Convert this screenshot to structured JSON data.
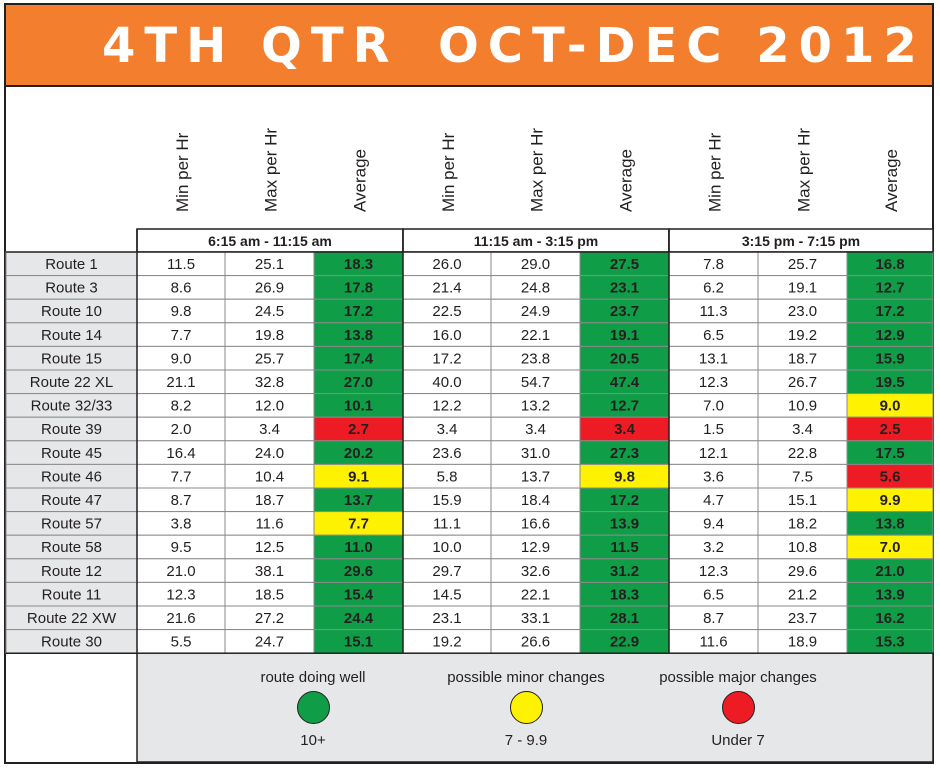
{
  "title_left": "4TH QTR",
  "title_right": "OCT-DEC 2012",
  "chart_data": {
    "type": "table",
    "columns": [
      "Min per Hr",
      "Max per Hr",
      "Average"
    ],
    "periods": [
      "6:15 am - 11:15 am",
      "11:15 am - 3:15 pm",
      "3:15 pm - 7:15 pm"
    ],
    "rows": [
      {
        "route": "Route 1",
        "values": [
          11.5,
          25.1,
          18.3,
          26.0,
          29.0,
          27.5,
          7.8,
          25.7,
          16.8
        ]
      },
      {
        "route": "Route 3",
        "values": [
          8.6,
          26.9,
          17.8,
          21.4,
          24.8,
          23.1,
          6.2,
          19.1,
          12.7
        ]
      },
      {
        "route": "Route 10",
        "values": [
          9.8,
          24.5,
          17.2,
          22.5,
          24.9,
          23.7,
          11.3,
          23.0,
          17.2
        ]
      },
      {
        "route": "Route 14",
        "values": [
          7.7,
          19.8,
          13.8,
          16.0,
          22.1,
          19.1,
          6.5,
          19.2,
          12.9
        ]
      },
      {
        "route": "Route 15",
        "values": [
          9.0,
          25.7,
          17.4,
          17.2,
          23.8,
          20.5,
          13.1,
          18.7,
          15.9
        ]
      },
      {
        "route": "Route 22 XL",
        "values": [
          21.1,
          32.8,
          27.0,
          40.0,
          54.7,
          47.4,
          12.3,
          26.7,
          19.5
        ]
      },
      {
        "route": "Route 32/33",
        "values": [
          8.2,
          12.0,
          10.1,
          12.2,
          13.2,
          12.7,
          7.0,
          10.9,
          9.0
        ]
      },
      {
        "route": "Route 39",
        "values": [
          2.0,
          3.4,
          2.7,
          3.4,
          3.4,
          3.4,
          1.5,
          3.4,
          2.5
        ]
      },
      {
        "route": "Route 45",
        "values": [
          16.4,
          24.0,
          20.2,
          23.6,
          31.0,
          27.3,
          12.1,
          22.8,
          17.5
        ]
      },
      {
        "route": "Route 46",
        "values": [
          7.7,
          10.4,
          9.1,
          5.8,
          13.7,
          9.8,
          3.6,
          7.5,
          5.6
        ]
      },
      {
        "route": "Route 47",
        "values": [
          8.7,
          18.7,
          13.7,
          15.9,
          18.4,
          17.2,
          4.7,
          15.1,
          9.9
        ]
      },
      {
        "route": "Route 57",
        "values": [
          3.8,
          11.6,
          7.7,
          11.1,
          16.6,
          13.9,
          9.4,
          18.2,
          13.8
        ]
      },
      {
        "route": "Route 58",
        "values": [
          9.5,
          12.5,
          11.0,
          10.0,
          12.9,
          11.5,
          3.2,
          10.8,
          7.0
        ]
      },
      {
        "route": "Route 12",
        "values": [
          21.0,
          38.1,
          29.6,
          29.7,
          32.6,
          31.2,
          12.3,
          29.6,
          21.0
        ]
      },
      {
        "route": "Route 11",
        "values": [
          12.3,
          18.5,
          15.4,
          14.5,
          22.1,
          18.3,
          6.5,
          21.2,
          13.9
        ]
      },
      {
        "route": "Route 22 XW",
        "values": [
          21.6,
          27.2,
          24.4,
          23.1,
          33.1,
          28.1,
          8.7,
          23.7,
          16.2
        ]
      },
      {
        "route": "Route 30",
        "values": [
          5.5,
          24.7,
          15.1,
          19.2,
          26.6,
          22.9,
          11.6,
          18.9,
          15.3
        ]
      }
    ],
    "legend": [
      {
        "label": "route doing well",
        "range": "10+",
        "color": "#0f9d48"
      },
      {
        "label": "possible minor changes",
        "range": "7 - 9.9",
        "color": "#fff200"
      },
      {
        "label": "possible major changes",
        "range": "Under 7",
        "color": "#ed1c24"
      }
    ]
  }
}
